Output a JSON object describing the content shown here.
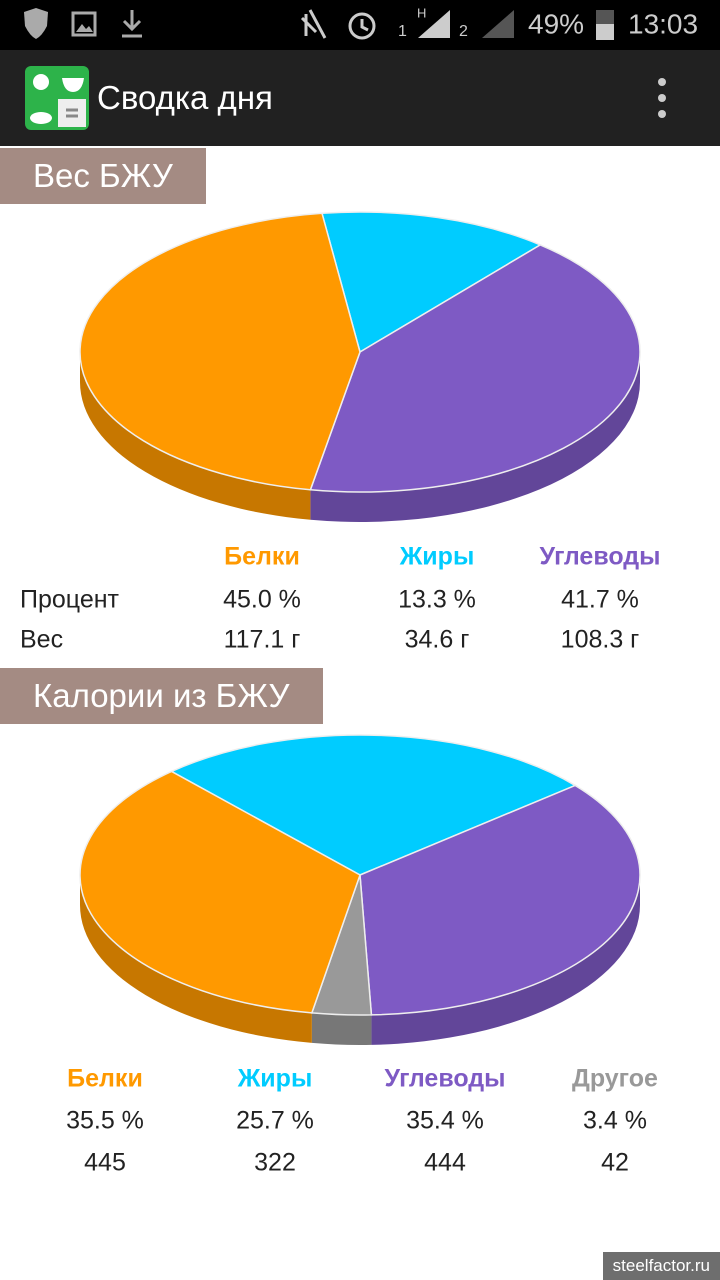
{
  "status_bar": {
    "sim1": "1",
    "network": "H",
    "sim2": "2",
    "battery": "49%",
    "time": "13:03"
  },
  "app_bar": {
    "title": "Сводка дня"
  },
  "chart_data": [
    {
      "type": "pie",
      "title": "Вес БЖУ",
      "categories": [
        "Белки",
        "Жиры",
        "Углеводы"
      ],
      "colors": [
        "#ff9900",
        "#00ccff",
        "#7e5ac4"
      ],
      "values": [
        45.0,
        13.3,
        41.7
      ],
      "value_labels": [
        "45.0 %",
        "13.3 %",
        "41.7 %"
      ],
      "row_labels": [
        "Процент",
        "Вес"
      ],
      "weights": [
        "117.1 г",
        "34.6 г",
        "108.3 г"
      ]
    },
    {
      "type": "pie",
      "title": "Калории из БЖУ",
      "categories": [
        "Белки",
        "Жиры",
        "Углеводы",
        "Другое"
      ],
      "colors": [
        "#ff9900",
        "#00ccff",
        "#7e5ac4",
        "#999999"
      ],
      "values": [
        35.5,
        25.7,
        35.4,
        3.4
      ],
      "value_labels": [
        "35.5 %",
        "25.7 %",
        "35.4 %",
        "3.4 %"
      ],
      "calories": [
        445,
        322,
        444,
        42
      ]
    }
  ],
  "watermark": "steelfactor.ru"
}
